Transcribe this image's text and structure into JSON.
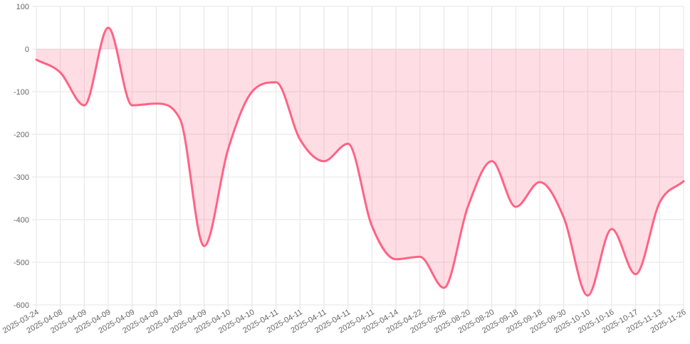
{
  "chart_data": {
    "type": "area",
    "title": "",
    "xlabel": "",
    "ylabel": "",
    "ylim": [
      -600,
      100
    ],
    "y_ticks": [
      100,
      0,
      -100,
      -200,
      -300,
      -400,
      -500,
      -600
    ],
    "grid": true,
    "legend": "none",
    "categories": [
      "2025-03-24",
      "2025-04-08",
      "2025-04-09",
      "2025-04-09",
      "2025-04-09",
      "2025-04-09",
      "2025-04-09",
      "2025-04-09",
      "2025-04-10",
      "2025-04-10",
      "2025-04-11",
      "2025-04-11",
      "2025-04-11",
      "2025-04-11",
      "2025-04-11",
      "2025-04-14",
      "2025-04-22",
      "2025-05-28",
      "2025-08-20",
      "2025-08-20",
      "2025-09-18",
      "2025-09-18",
      "2025-09-30",
      "2025-10-10",
      "2025-10-16",
      "2025-10-17",
      "2025-11-13",
      "2025-11-26"
    ],
    "series": [
      {
        "values": [
          -25,
          -55,
          -132,
          50,
          -132,
          -128,
          -165,
          -462,
          -235,
          -100,
          -78,
          -212,
          -263,
          -222,
          -415,
          -493,
          -487,
          -560,
          -370,
          -263,
          -370,
          -312,
          -395,
          -578,
          -422,
          -528,
          -360,
          -310
        ],
        "color": "#ff6384",
        "fill": "rgba(255, 99, 132, 0.22)"
      }
    ]
  }
}
